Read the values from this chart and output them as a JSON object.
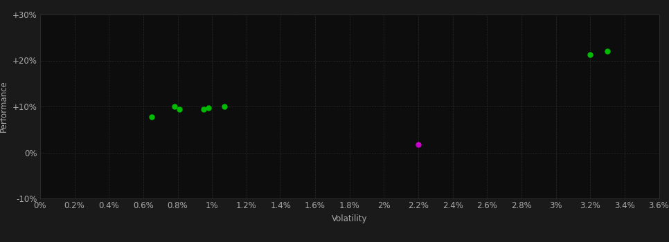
{
  "background_color": "#1a1a1a",
  "plot_bg_color": "#0d0d0d",
  "grid_color": "#2a2a2a",
  "text_color": "#aaaaaa",
  "xlabel": "Volatility",
  "ylabel": "Performance",
  "xlim": [
    0,
    0.036
  ],
  "ylim": [
    -0.1,
    0.3
  ],
  "xticks": [
    0.0,
    0.002,
    0.004,
    0.006,
    0.008,
    0.01,
    0.012,
    0.014,
    0.016,
    0.018,
    0.02,
    0.022,
    0.024,
    0.026,
    0.028,
    0.03,
    0.032,
    0.034,
    0.036
  ],
  "yticks": [
    -0.1,
    0.0,
    0.1,
    0.2,
    0.3
  ],
  "green_points": [
    [
      0.0065,
      0.078
    ],
    [
      0.0078,
      0.1
    ],
    [
      0.0081,
      0.094
    ],
    [
      0.0095,
      0.094
    ],
    [
      0.0098,
      0.097
    ],
    [
      0.0107,
      0.1
    ],
    [
      0.032,
      0.213
    ],
    [
      0.033,
      0.22
    ]
  ],
  "magenta_points": [
    [
      0.022,
      0.018
    ]
  ],
  "point_size": 25,
  "font_size": 8.5
}
